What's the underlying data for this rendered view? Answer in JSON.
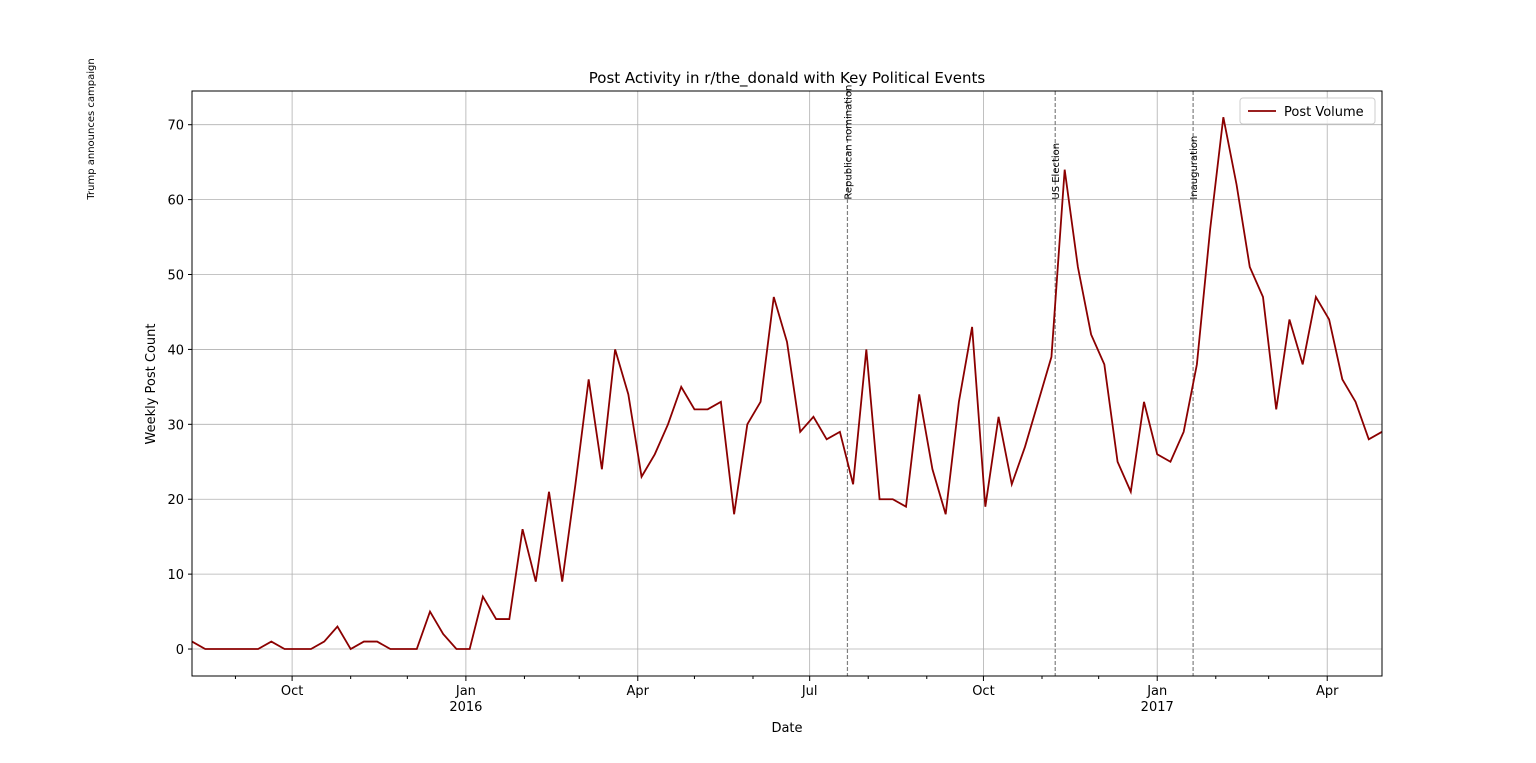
{
  "chart_data": {
    "type": "line",
    "title": "Post Activity in r/the_donald with Key Political Events",
    "xlabel": "Date",
    "ylabel": "Weekly Post Count",
    "x": [
      "2015-08-09",
      "2015-08-16",
      "2015-08-23",
      "2015-08-30",
      "2015-09-06",
      "2015-09-13",
      "2015-09-20",
      "2015-09-27",
      "2015-10-04",
      "2015-10-11",
      "2015-10-18",
      "2015-10-25",
      "2015-11-01",
      "2015-11-08",
      "2015-11-15",
      "2015-11-22",
      "2015-11-29",
      "2015-12-06",
      "2015-12-13",
      "2015-12-20",
      "2015-12-27",
      "2016-01-03",
      "2016-01-10",
      "2016-01-17",
      "2016-01-24",
      "2016-01-31",
      "2016-02-07",
      "2016-02-14",
      "2016-02-21",
      "2016-02-28",
      "2016-03-06",
      "2016-03-13",
      "2016-03-20",
      "2016-03-27",
      "2016-04-03",
      "2016-04-10",
      "2016-04-17",
      "2016-04-24",
      "2016-05-01",
      "2016-05-08",
      "2016-05-15",
      "2016-05-22",
      "2016-05-29",
      "2016-06-05",
      "2016-06-12",
      "2016-06-19",
      "2016-06-26",
      "2016-07-03",
      "2016-07-10",
      "2016-07-17",
      "2016-07-24",
      "2016-07-31",
      "2016-08-07",
      "2016-08-14",
      "2016-08-21",
      "2016-08-28",
      "2016-09-04",
      "2016-09-11",
      "2016-09-18",
      "2016-09-25",
      "2016-10-02",
      "2016-10-09",
      "2016-10-16",
      "2016-10-23",
      "2016-10-30",
      "2016-11-06",
      "2016-11-13",
      "2016-11-20",
      "2016-11-27",
      "2016-12-04",
      "2016-12-11",
      "2016-12-18",
      "2016-12-25",
      "2017-01-01",
      "2017-01-08",
      "2017-01-15",
      "2017-01-22",
      "2017-01-29",
      "2017-02-05",
      "2017-02-12",
      "2017-02-19",
      "2017-02-26",
      "2017-03-05",
      "2017-03-12",
      "2017-03-19",
      "2017-03-26",
      "2017-04-02",
      "2017-04-09",
      "2017-04-16",
      "2017-04-23",
      "2017-04-30"
    ],
    "series": [
      {
        "name": "Post Volume",
        "color": "#8b0000",
        "values": [
          1,
          0,
          0,
          0,
          0,
          0,
          1,
          0,
          0,
          0,
          1,
          3,
          0,
          1,
          1,
          0,
          0,
          0,
          5,
          2,
          0,
          0,
          7,
          4,
          4,
          16,
          9,
          21,
          9,
          22,
          36,
          24,
          40,
          34,
          23,
          26,
          30,
          35,
          32,
          32,
          33,
          18,
          30,
          33,
          47,
          41,
          29,
          31,
          28,
          29,
          22,
          40,
          20,
          20,
          19,
          34,
          24,
          18,
          33,
          43,
          19,
          31,
          22,
          27,
          33,
          39,
          64,
          51,
          42,
          38,
          25,
          21,
          33,
          26,
          25,
          29,
          38,
          56,
          71,
          62,
          51,
          47,
          32,
          44,
          38,
          47,
          44,
          36,
          33,
          28,
          29
        ]
      }
    ],
    "xlim": [
      "2015-08-09",
      "2017-04-30"
    ],
    "xticks": [
      {
        "value": "2015-10-01",
        "label": "Oct"
      },
      {
        "value": "2016-01-01",
        "label": "Jan\n2016"
      },
      {
        "value": "2016-04-01",
        "label": "Apr"
      },
      {
        "value": "2016-07-01",
        "label": "Jul"
      },
      {
        "value": "2016-10-01",
        "label": "Oct"
      },
      {
        "value": "2017-01-01",
        "label": "Jan\n2017"
      },
      {
        "value": "2017-04-01",
        "label": "Apr"
      }
    ],
    "xminorticks": [
      "2015-09-01",
      "2015-11-01",
      "2015-12-01",
      "2016-02-01",
      "2016-03-01",
      "2016-05-01",
      "2016-06-01",
      "2016-08-01",
      "2016-09-01",
      "2016-11-01",
      "2016-12-01",
      "2017-02-01",
      "2017-03-01"
    ],
    "ylim": [
      -3.6,
      74.5
    ],
    "yticks": [
      0,
      10,
      20,
      30,
      40,
      50,
      60,
      70
    ],
    "grid": true,
    "legend": "upper right",
    "events": [
      {
        "date": "2015-06-16",
        "label": "Trump announces campaign"
      },
      {
        "date": "2016-07-21",
        "label": "Republican nomination"
      },
      {
        "date": "2016-11-08",
        "label": "US Election"
      },
      {
        "date": "2017-01-20",
        "label": "Inauguration"
      }
    ],
    "event_label_y": 60
  }
}
